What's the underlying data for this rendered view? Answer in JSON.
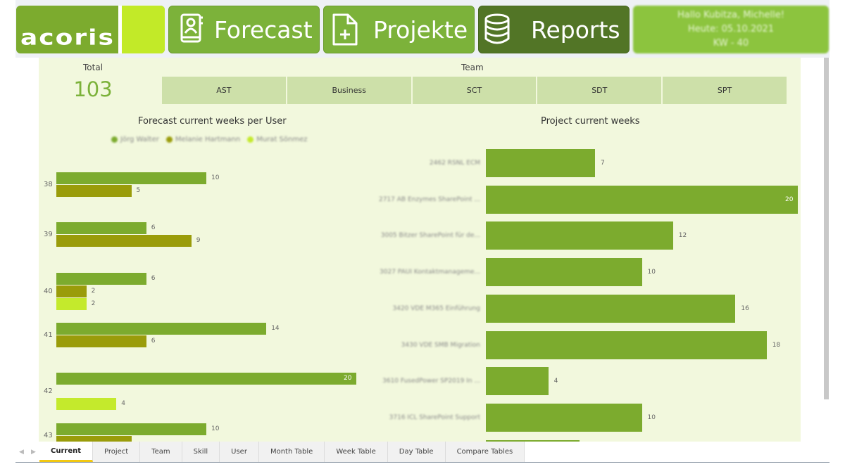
{
  "header": {
    "logo_text": "acoris",
    "nav": [
      {
        "label": "Forecast",
        "icon": "contact-book-icon",
        "active": false
      },
      {
        "label": "Projekte",
        "icon": "file-add-icon",
        "active": false
      },
      {
        "label": "Reports",
        "icon": "database-icon",
        "active": true
      }
    ],
    "user": {
      "greeting": "Hallo Kubitza, Michelle!",
      "date": "Heute: 05.10.2021",
      "week": "KW - 40"
    }
  },
  "kpi": {
    "label": "Total",
    "value": "103"
  },
  "team_slicer": {
    "label": "Team",
    "options": [
      "AST",
      "Business",
      "SCT",
      "SDT",
      "SPT"
    ]
  },
  "colors": {
    "accent": "#7cab2e",
    "series_1": "#7cab2e",
    "series_2": "#9a9c0a",
    "series_3": "#c4ea2c",
    "canvas_bg": "#f2f8dd",
    "slicer_bg": "#cde0a9",
    "active_nav": "#527526",
    "active_tab_underline": "#f2c811"
  },
  "chart_data": [
    {
      "type": "bar",
      "orientation": "horizontal",
      "title": "Forecast current weeks per User",
      "categories": [
        "38",
        "39",
        "40",
        "41",
        "42",
        "43"
      ],
      "series": [
        {
          "name": "Jörg Walter",
          "values": [
            10,
            6,
            6,
            14,
            20,
            10
          ]
        },
        {
          "name": "Melanie Hartmann",
          "values": [
            5,
            9,
            2,
            6,
            null,
            5
          ]
        },
        {
          "name": "Murat Sönmez",
          "values": [
            null,
            null,
            2,
            null,
            4,
            null
          ]
        }
      ],
      "legend_position": "top",
      "grid": false
    },
    {
      "type": "bar",
      "orientation": "horizontal",
      "title": "Project current weeks",
      "categories": [
        "2462 RSNL ECM",
        "2717 AB Enzymes SharePoint ...",
        "3005 Bitzer SharePoint für de...",
        "3027 PAUI Kontaktmanageme...",
        "3420 VDE M365 Einführung",
        "3430 VDE SMB Migration",
        "3610 FusedPower SP2019 In ...",
        "3716 ICL SharePoint Support",
        "..."
      ],
      "values": [
        7,
        20,
        12,
        10,
        16,
        18,
        4,
        10,
        6
      ],
      "grid": false
    }
  ],
  "tabs": [
    "Current",
    "Project",
    "Team",
    "Skill",
    "User",
    "Month Table",
    "Week Table",
    "Day Table",
    "Compare Tables"
  ],
  "active_tab": "Current"
}
